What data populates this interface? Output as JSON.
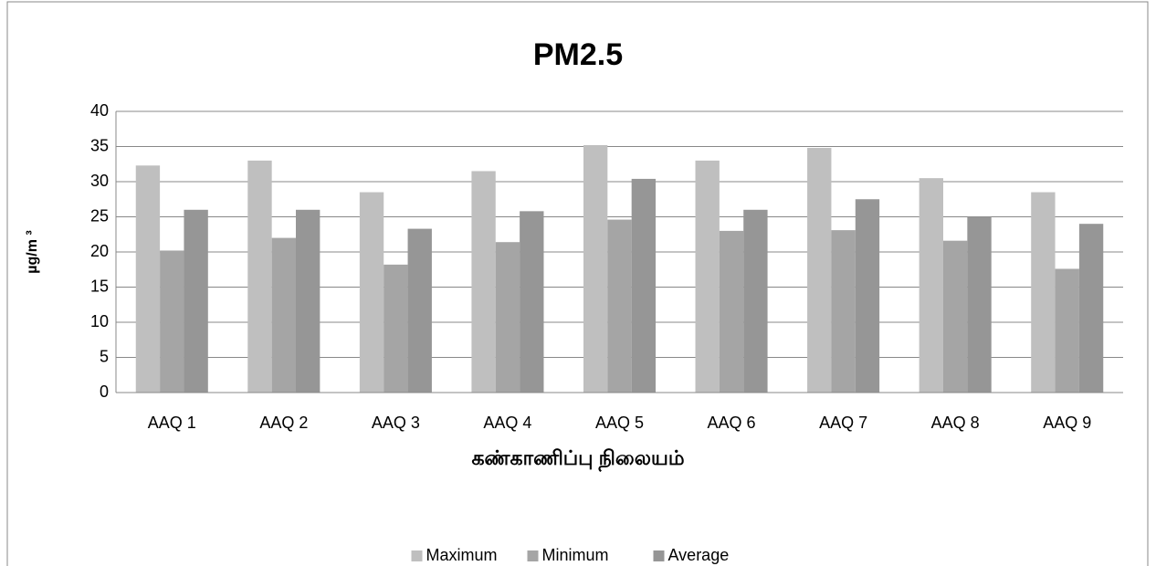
{
  "chart_data": {
    "type": "bar",
    "title": "PM2.5",
    "x_label": "கண்காணிப்பு நிலையம்",
    "y_label": "µg/m ³",
    "categories": [
      "AAQ 1",
      "AAQ 2",
      "AAQ 3",
      "AAQ 4",
      "AAQ 5",
      "AAQ 6",
      "AAQ 7",
      "AAQ 8",
      "AAQ 9"
    ],
    "series": [
      {
        "name": "Maximum",
        "color": "#bfbfbf",
        "values": [
          32.3,
          33,
          28.5,
          31.5,
          35.2,
          33,
          34.8,
          30.5,
          28.5
        ]
      },
      {
        "name": "Minimum",
        "color": "#a5a5a5",
        "values": [
          20.2,
          22,
          18.2,
          21.4,
          24.6,
          23,
          23.1,
          21.6,
          17.6
        ]
      },
      {
        "name": "Average",
        "color": "#969696",
        "values": [
          26,
          26,
          23.3,
          25.8,
          30.4,
          26,
          27.5,
          25,
          24
        ]
      }
    ],
    "ylim": [
      0,
      40
    ],
    "yticks": [
      0,
      5,
      10,
      15,
      20,
      25,
      30,
      35,
      40
    ],
    "grid": true,
    "legend": "bottom"
  }
}
